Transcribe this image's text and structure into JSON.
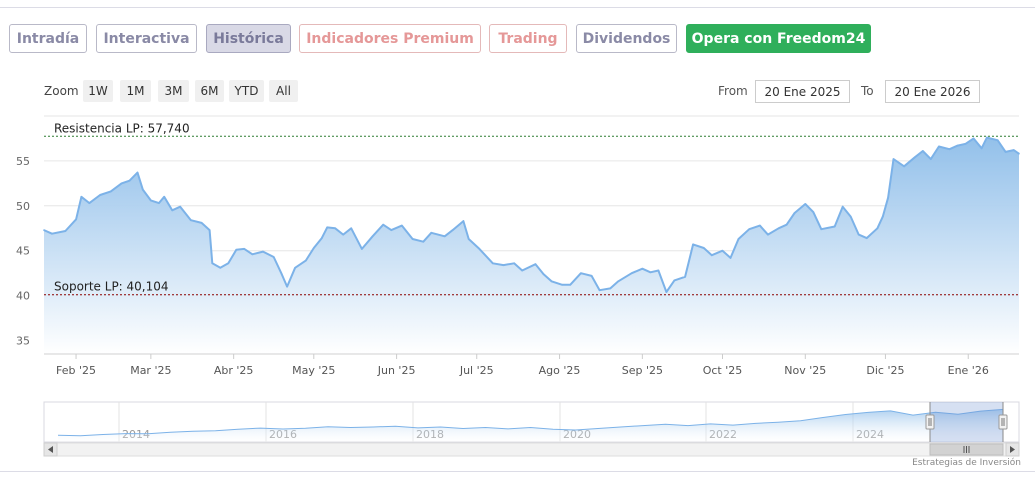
{
  "tabs": [
    {
      "label": "Intradía",
      "style": "grey"
    },
    {
      "label": "Interactiva",
      "style": "grey"
    },
    {
      "label": "Histórica",
      "style": "active"
    },
    {
      "label": "Indicadores Premium",
      "style": "pink"
    },
    {
      "label": "Trading",
      "style": "pink"
    },
    {
      "label": "Dividendos",
      "style": "grey"
    },
    {
      "label": "Opera con Freedom24",
      "style": "green"
    }
  ],
  "zoom": {
    "label": "Zoom",
    "buttons": [
      "1W",
      "1M",
      "3M",
      "6M",
      "YTD",
      "All"
    ]
  },
  "range": {
    "from_label": "From",
    "from_value": "20 Ene 2025",
    "to_label": "To",
    "to_value": "20 Ene 2026"
  },
  "credit": "Estrategias de Inversión",
  "colors": {
    "line": "#7cb2e8",
    "area_top": "#8dbde9",
    "area_bottom": "#ffffff",
    "resistance": "#2e7d32",
    "support": "#8b0000",
    "green_button": "#2faf5b"
  },
  "chart_data": {
    "type": "area",
    "title": "",
    "xlabel": "",
    "ylabel": "",
    "ylim": [
      33.5,
      60
    ],
    "yticks": [
      35,
      40,
      45,
      50,
      55
    ],
    "xlim": [
      "2025-01-20",
      "2026-01-20"
    ],
    "grid": true,
    "x_tick_labels": [
      {
        "date": "2025-02-01",
        "label": "Feb '25"
      },
      {
        "date": "2025-03-01",
        "label": "Mar '25"
      },
      {
        "date": "2025-04-01",
        "label": "Abr '25"
      },
      {
        "date": "2025-05-01",
        "label": "May '25"
      },
      {
        "date": "2025-06-01",
        "label": "Jun '25"
      },
      {
        "date": "2025-07-01",
        "label": "Jul '25"
      },
      {
        "date": "2025-08-01",
        "label": "Ago '25"
      },
      {
        "date": "2025-09-01",
        "label": "Sep '25"
      },
      {
        "date": "2025-10-01",
        "label": "Oct '25"
      },
      {
        "date": "2025-11-01",
        "label": "Nov '25"
      },
      {
        "date": "2025-12-01",
        "label": "Dic '25"
      },
      {
        "date": "2026-01-01",
        "label": "Ene '26"
      }
    ],
    "reference_lines": [
      {
        "label": "Resistencia LP: 57,740",
        "value": 57.74,
        "style": "resistance"
      },
      {
        "label": "Soporte LP: 40,104",
        "value": 40.104,
        "style": "support"
      }
    ],
    "series": [
      {
        "points": [
          [
            "2025-01-20",
            47.3
          ],
          [
            "2025-01-23",
            46.9
          ],
          [
            "2025-01-28",
            47.2
          ],
          [
            "2025-02-01",
            48.5
          ],
          [
            "2025-02-03",
            51.0
          ],
          [
            "2025-02-06",
            50.3
          ],
          [
            "2025-02-10",
            51.2
          ],
          [
            "2025-02-14",
            51.6
          ],
          [
            "2025-02-18",
            52.5
          ],
          [
            "2025-02-21",
            52.8
          ],
          [
            "2025-02-24",
            53.7
          ],
          [
            "2025-02-26",
            51.8
          ],
          [
            "2025-03-01",
            50.6
          ],
          [
            "2025-03-04",
            50.3
          ],
          [
            "2025-03-06",
            51.0
          ],
          [
            "2025-03-09",
            49.5
          ],
          [
            "2025-03-12",
            49.9
          ],
          [
            "2025-03-16",
            48.4
          ],
          [
            "2025-03-20",
            48.1
          ],
          [
            "2025-03-23",
            47.3
          ],
          [
            "2025-03-24",
            43.6
          ],
          [
            "2025-03-27",
            43.1
          ],
          [
            "2025-03-30",
            43.6
          ],
          [
            "2025-04-02",
            45.1
          ],
          [
            "2025-04-05",
            45.2
          ],
          [
            "2025-04-08",
            44.6
          ],
          [
            "2025-04-12",
            44.9
          ],
          [
            "2025-04-16",
            44.3
          ],
          [
            "2025-04-19",
            42.4
          ],
          [
            "2025-04-21",
            41.0
          ],
          [
            "2025-04-24",
            43.1
          ],
          [
            "2025-04-28",
            43.9
          ],
          [
            "2025-05-01",
            45.3
          ],
          [
            "2025-05-04",
            46.4
          ],
          [
            "2025-05-06",
            47.6
          ],
          [
            "2025-05-09",
            47.5
          ],
          [
            "2025-05-12",
            46.8
          ],
          [
            "2025-05-15",
            47.5
          ],
          [
            "2025-05-19",
            45.2
          ],
          [
            "2025-05-23",
            46.6
          ],
          [
            "2025-05-27",
            47.9
          ],
          [
            "2025-05-30",
            47.3
          ],
          [
            "2025-06-03",
            47.8
          ],
          [
            "2025-06-07",
            46.3
          ],
          [
            "2025-06-11",
            46.0
          ],
          [
            "2025-06-14",
            47.0
          ],
          [
            "2025-06-19",
            46.6
          ],
          [
            "2025-06-22",
            47.3
          ],
          [
            "2025-06-26",
            48.3
          ],
          [
            "2025-06-28",
            46.3
          ],
          [
            "2025-07-02",
            45.2
          ],
          [
            "2025-07-07",
            43.6
          ],
          [
            "2025-07-11",
            43.4
          ],
          [
            "2025-07-15",
            43.6
          ],
          [
            "2025-07-18",
            42.8
          ],
          [
            "2025-07-23",
            43.5
          ],
          [
            "2025-07-26",
            42.4
          ],
          [
            "2025-07-29",
            41.6
          ],
          [
            "2025-08-02",
            41.2
          ],
          [
            "2025-08-05",
            41.2
          ],
          [
            "2025-08-09",
            42.5
          ],
          [
            "2025-08-13",
            42.2
          ],
          [
            "2025-08-16",
            40.6
          ],
          [
            "2025-08-20",
            40.8
          ],
          [
            "2025-08-23",
            41.6
          ],
          [
            "2025-08-28",
            42.5
          ],
          [
            "2025-09-01",
            43.0
          ],
          [
            "2025-09-04",
            42.6
          ],
          [
            "2025-09-07",
            42.8
          ],
          [
            "2025-09-10",
            40.4
          ],
          [
            "2025-09-13",
            41.7
          ],
          [
            "2025-09-17",
            42.1
          ],
          [
            "2025-09-20",
            45.7
          ],
          [
            "2025-09-24",
            45.3
          ],
          [
            "2025-09-27",
            44.5
          ],
          [
            "2025-10-01",
            45.0
          ],
          [
            "2025-10-04",
            44.2
          ],
          [
            "2025-10-07",
            46.3
          ],
          [
            "2025-10-11",
            47.4
          ],
          [
            "2025-10-15",
            47.8
          ],
          [
            "2025-10-18",
            46.8
          ],
          [
            "2025-10-22",
            47.5
          ],
          [
            "2025-10-25",
            47.9
          ],
          [
            "2025-10-28",
            49.2
          ],
          [
            "2025-11-01",
            50.2
          ],
          [
            "2025-11-04",
            49.3
          ],
          [
            "2025-11-07",
            47.4
          ],
          [
            "2025-11-12",
            47.7
          ],
          [
            "2025-11-15",
            49.9
          ],
          [
            "2025-11-18",
            48.8
          ],
          [
            "2025-11-21",
            46.8
          ],
          [
            "2025-11-24",
            46.4
          ],
          [
            "2025-11-28",
            47.5
          ],
          [
            "2025-11-30",
            48.8
          ],
          [
            "2025-12-02",
            50.9
          ],
          [
            "2025-12-04",
            55.2
          ],
          [
            "2025-12-08",
            54.4
          ],
          [
            "2025-12-12",
            55.4
          ],
          [
            "2025-12-15",
            56.1
          ],
          [
            "2025-12-18",
            55.2
          ],
          [
            "2025-12-21",
            56.6
          ],
          [
            "2025-12-25",
            56.3
          ],
          [
            "2025-12-28",
            56.7
          ],
          [
            "2025-12-31",
            56.9
          ],
          [
            "2026-01-03",
            57.5
          ],
          [
            "2026-01-06",
            56.4
          ],
          [
            "2026-01-08",
            57.6
          ],
          [
            "2026-01-12",
            57.3
          ],
          [
            "2026-01-15",
            56.0
          ],
          [
            "2026-01-18",
            56.2
          ],
          [
            "2026-01-20",
            55.8
          ]
        ]
      }
    ]
  },
  "navigator": {
    "year_labels": [
      "2014",
      "2016",
      "2018",
      "2020",
      "2022",
      "2024"
    ],
    "values": [
      36.5,
      36.2,
      36.9,
      37.4,
      37.3,
      38.1,
      38.6,
      38.9,
      39.7,
      40.3,
      39.8,
      40.2,
      41.0,
      40.6,
      40.9,
      41.3,
      40.4,
      40.9,
      40.1,
      40.6,
      39.9,
      40.6,
      39.7,
      39.3,
      40.1,
      40.9,
      41.6,
      42.3,
      41.6,
      42.5,
      41.9,
      42.8,
      43.4,
      44.2,
      45.9,
      47.5,
      48.6,
      49.4,
      47.2,
      48.7,
      47.6,
      49.3,
      50.2
    ]
  }
}
